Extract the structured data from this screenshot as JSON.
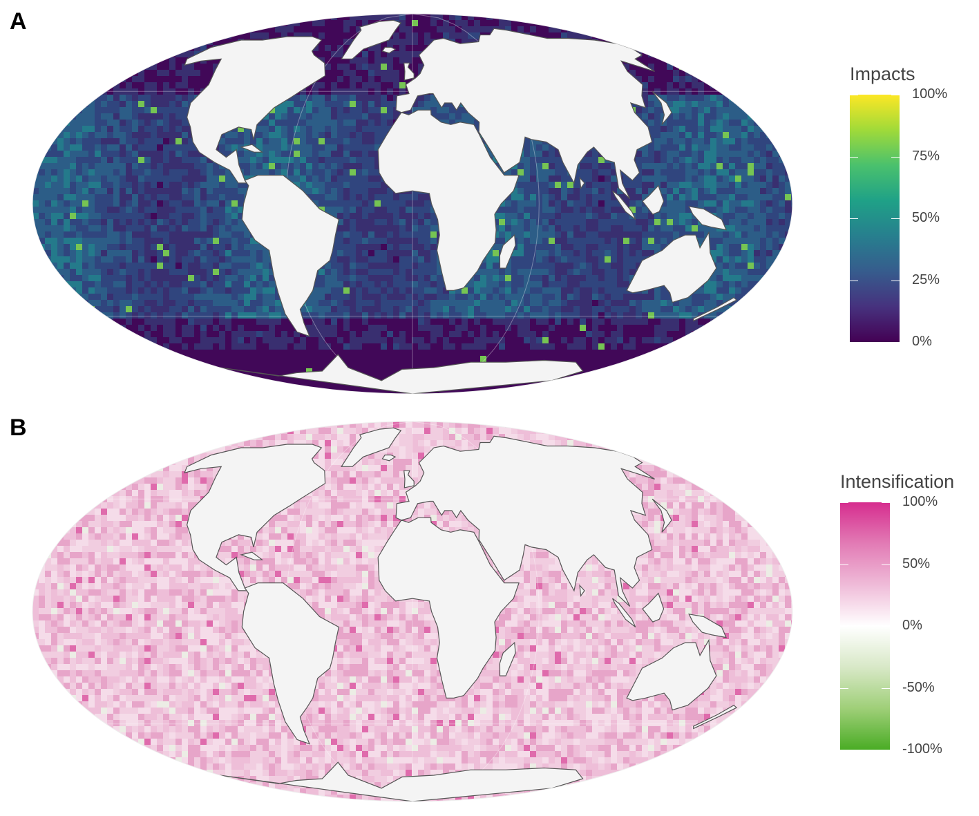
{
  "panels": [
    {
      "letter": "A",
      "legend": {
        "title": "Impacts",
        "ticks": [
          "100%",
          "75%",
          "50%",
          "25%",
          "0%"
        ],
        "colors": [
          "#fde725",
          "#a0da39",
          "#4ac16d",
          "#1fa187",
          "#277f8e",
          "#365c8d",
          "#46327e",
          "#440154"
        ]
      },
      "map": {
        "ocean_colors": [
          "#440154",
          "#3b2c6f",
          "#31457e",
          "#2c5f88",
          "#24808d",
          "#2aa284",
          "#7ed34f",
          "#fde725"
        ],
        "land_color": "#f4f4f4",
        "coast_color": "#555555"
      }
    },
    {
      "letter": "B",
      "legend": {
        "title": "Intensification",
        "ticks": [
          "100%",
          "50%",
          "0%",
          "-50%",
          "-100%"
        ],
        "colors": [
          "#d62d8e",
          "#e27bb5",
          "#efbbd8",
          "#ffffff",
          "#d8e8c7",
          "#9fcf78",
          "#4aac25"
        ]
      },
      "map": {
        "ocean_colors": [
          "#f5dce9",
          "#f0c9dd",
          "#ecb7d3",
          "#e497c1",
          "#d94f9c",
          "#eaf1e3"
        ],
        "land_color": "#f4f4f4",
        "coast_color": "#555555"
      }
    }
  ]
}
